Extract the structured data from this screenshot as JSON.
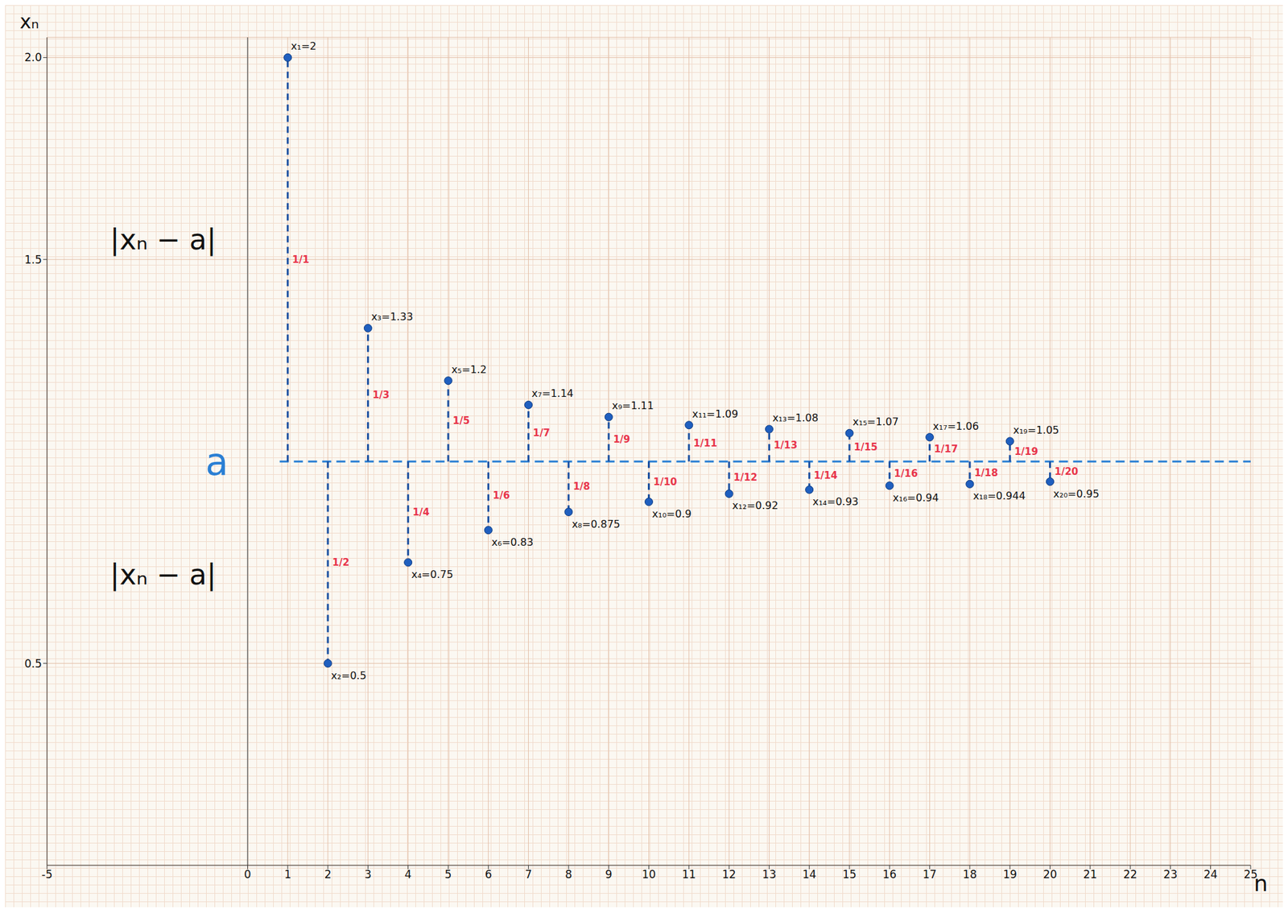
{
  "chart_data": {
    "type": "scatter",
    "x_label": "n",
    "y_label": "xₙ",
    "x": [
      1,
      2,
      3,
      4,
      5,
      6,
      7,
      8,
      9,
      10,
      11,
      12,
      13,
      14,
      15,
      16,
      17,
      18,
      19,
      20
    ],
    "values": [
      2,
      0.5,
      1.33,
      0.75,
      1.2,
      0.83,
      1.14,
      0.875,
      1.11,
      0.9,
      1.09,
      0.92,
      1.08,
      0.93,
      1.07,
      0.94,
      1.06,
      0.944,
      1.05,
      0.95
    ],
    "value_labels": [
      "x₁=2",
      "x₂=0.5",
      "x₃=1.33",
      "x₄=0.75",
      "x₅=1.2",
      "x₆=0.83",
      "x₇=1.14",
      "x₈=0.875",
      "x₉=1.11",
      "x₁₀=0.9",
      "x₁₁=1.09",
      "x₁₂=0.92",
      "x₁₃=1.08",
      "x₁₄=0.93",
      "x₁₅=1.07",
      "x₁₆=0.94",
      "x₁₇=1.06",
      "x₁₈=0.944",
      "x₁₉=1.05",
      "x₂₀=0.95"
    ],
    "distance_labels": [
      "1/1",
      "1/2",
      "1/3",
      "1/4",
      "1/5",
      "1/6",
      "1/7",
      "1/8",
      "1/9",
      "1/10",
      "1/11",
      "1/12",
      "1/13",
      "1/14",
      "1/15",
      "1/16",
      "1/17",
      "1/18",
      "1/19",
      "1/20"
    ],
    "limit": 1,
    "limit_label": "a",
    "annotations": [
      "|xₙ − a|",
      "|xₙ − a|"
    ],
    "xlim": [
      -5,
      25
    ],
    "xticks": [
      -5,
      0,
      1,
      2,
      3,
      4,
      5,
      6,
      7,
      8,
      9,
      10,
      11,
      12,
      13,
      14,
      15,
      16,
      17,
      18,
      19,
      20,
      21,
      22,
      23,
      24,
      25
    ],
    "ylim": [
      0,
      2.05
    ],
    "yticks": [
      0.5,
      1.5,
      {
        "value": 2,
        "label": "2.0"
      }
    ],
    "grid": true,
    "color": "#1f5fbf",
    "marker": "circle",
    "line_style": "dashed"
  }
}
